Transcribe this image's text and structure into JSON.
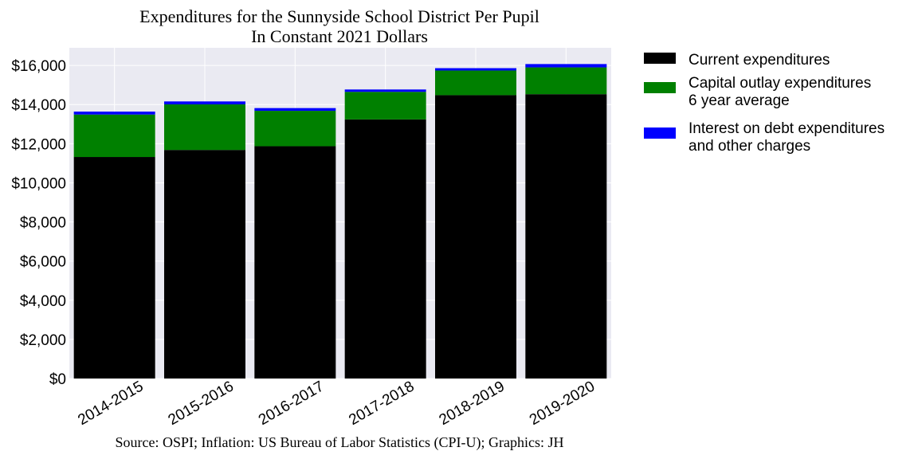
{
  "chart_data": {
    "type": "bar",
    "stacked": true,
    "title": [
      "Expenditures for the Sunnyside School District Per Pupil",
      "In Constant 2021 Dollars"
    ],
    "categories": [
      "2014-2015",
      "2015-2016",
      "2016-2017",
      "2017-2018",
      "2018-2019",
      "2019-2020"
    ],
    "series": [
      {
        "name": "Current expenditures",
        "color": "#000000",
        "values": [
          11320,
          11680,
          11870,
          13240,
          14480,
          14530
        ]
      },
      {
        "name": [
          "Capital outlay expenditures",
          "6 year average"
        ],
        "color": "#008000",
        "values": [
          2170,
          2330,
          1810,
          1410,
          1260,
          1370
        ]
      },
      {
        "name": [
          "Interest on debt expenditures",
          "and other charges"
        ],
        "color": "#0000ff",
        "values": [
          150,
          150,
          140,
          120,
          120,
          170
        ]
      }
    ],
    "ylim": [
      0,
      16900
    ],
    "yticks": [
      0,
      2000,
      4000,
      6000,
      8000,
      10000,
      12000,
      14000,
      16000
    ],
    "ytick_labels": [
      "$0",
      "$2,000",
      "$4,000",
      "$6,000",
      "$8,000",
      "$10,000",
      "$12,000",
      "$14,000",
      "$16,000"
    ],
    "grid": true,
    "legend_position": "outside-right",
    "source": "Source: OSPI; Inflation: US Bureau of Labor Statistics (CPI-U); Graphics: JH"
  }
}
